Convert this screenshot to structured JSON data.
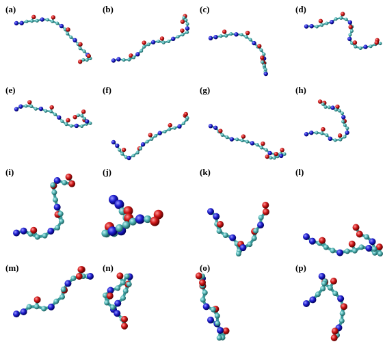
{
  "panels": [
    {
      "label": "(a)"
    },
    {
      "label": "(b)"
    },
    {
      "label": "(c)"
    },
    {
      "label": "(d)"
    },
    {
      "label": "(e)"
    },
    {
      "label": "(f)"
    },
    {
      "label": "(g)"
    },
    {
      "label": "(h)"
    },
    {
      "label": "(i)"
    },
    {
      "label": "(j)"
    },
    {
      "label": "(k)"
    },
    {
      "label": "(l)"
    },
    {
      "label": "(m)"
    },
    {
      "label": "(n)"
    },
    {
      "label": "(o)"
    },
    {
      "label": "(p)"
    }
  ]
}
